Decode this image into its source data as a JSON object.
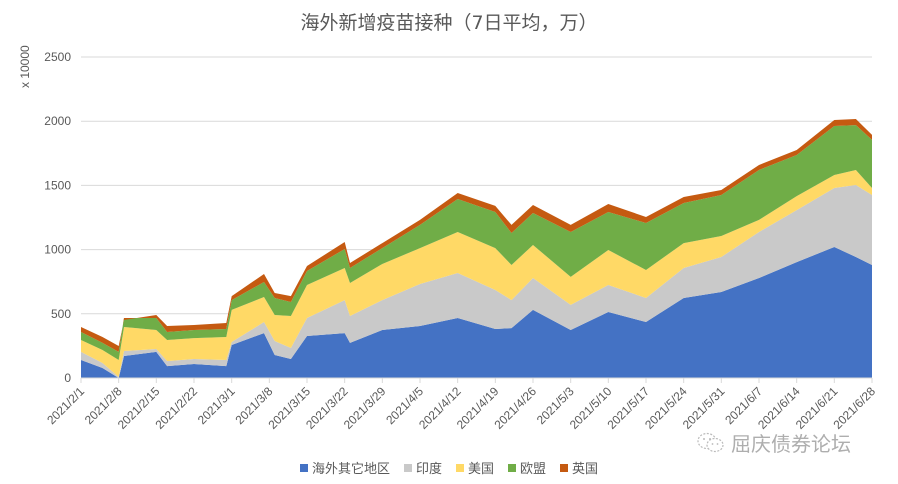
{
  "chart_data": {
    "type": "area",
    "stacked": true,
    "title": "海外新增疫苗接种（7日平均，万）",
    "xlabel": "",
    "ylabel": "x 10000",
    "ylim": [
      0,
      2500
    ],
    "yticks": [
      0,
      500,
      1000,
      1500,
      2000,
      2500
    ],
    "grid": true,
    "legend_position": "bottom",
    "x_tick_labels": [
      "2021/2/1",
      "2021/2/8",
      "2021/2/15",
      "2021/2/22",
      "2021/3/1",
      "2021/3/8",
      "2021/3/15",
      "2021/3/22",
      "2021/3/29",
      "2021/4/5",
      "2021/4/12",
      "2021/4/19",
      "2021/4/26",
      "2021/5/3",
      "2021/5/10",
      "2021/5/17",
      "2021/5/24",
      "2021/5/31",
      "2021/6/7",
      "2021/6/14",
      "2021/6/21",
      "2021/6/28"
    ],
    "x": [
      "2021/2/1",
      "2021/2/5",
      "2021/2/8",
      "2021/2/9",
      "2021/2/15",
      "2021/2/17",
      "2021/2/22",
      "2021/2/28",
      "2021/3/1",
      "2021/3/7",
      "2021/3/9",
      "2021/3/12",
      "2021/3/15",
      "2021/3/22",
      "2021/3/23",
      "2021/3/29",
      "2021/4/5",
      "2021/4/12",
      "2021/4/19",
      "2021/4/22",
      "2021/4/26",
      "2021/5/3",
      "2021/5/10",
      "2021/5/17",
      "2021/5/24",
      "2021/5/31",
      "2021/6/7",
      "2021/6/14",
      "2021/6/21",
      "2021/6/25",
      "2021/6/28"
    ],
    "series": [
      {
        "name": "海外其它地区",
        "color": "#4472C4",
        "values": [
          140,
          78,
          0,
          171,
          203,
          93,
          109,
          93,
          257,
          350,
          179,
          148,
          327,
          350,
          273,
          374,
          405,
          467,
          382,
          389,
          530,
          374,
          514,
          436,
          623,
          670,
          779,
          903,
          1020,
          942,
          880
        ]
      },
      {
        "name": "印度",
        "color": "#C9C9C9",
        "values": [
          63,
          39,
          8,
          39,
          23,
          39,
          39,
          47,
          23,
          86,
          109,
          86,
          140,
          257,
          210,
          233,
          327,
          351,
          303,
          218,
          249,
          195,
          210,
          187,
          234,
          272,
          358,
          405,
          460,
          561,
          545
        ]
      },
      {
        "name": "美国",
        "color": "#FFD966",
        "values": [
          93,
          101,
          132,
          187,
          148,
          164,
          163,
          179,
          250,
          195,
          203,
          249,
          257,
          250,
          257,
          281,
          280,
          319,
          327,
          273,
          257,
          218,
          273,
          218,
          194,
          164,
          94,
          109,
          101,
          117,
          55
        ]
      },
      {
        "name": "欧盟",
        "color": "#70AD47",
        "values": [
          62,
          55,
          63,
          70,
          93,
          62,
          63,
          63,
          77,
          117,
          132,
          109,
          109,
          148,
          117,
          124,
          180,
          257,
          281,
          249,
          249,
          350,
          296,
          366,
          312,
          319,
          389,
          320,
          382,
          350,
          374
        ]
      },
      {
        "name": "英国",
        "color": "#C55A11",
        "values": [
          39,
          46,
          46,
          -15,
          24,
          47,
          39,
          46,
          31,
          62,
          39,
          46,
          39,
          54,
          39,
          39,
          39,
          47,
          47,
          63,
          62,
          55,
          62,
          47,
          47,
          39,
          39,
          39,
          46,
          47,
          39
        ]
      }
    ]
  },
  "title": "海外新增疫苗接种（7日平均，万）",
  "y_axis_label": "x 10000",
  "y_ticks": [
    "0",
    "500",
    "1000",
    "1500",
    "2000",
    "2500"
  ],
  "x_ticks": [
    "2021/2/1",
    "2021/2/8",
    "2021/2/15",
    "2021/2/22",
    "2021/3/1",
    "2021/3/8",
    "2021/3/15",
    "2021/3/22",
    "2021/3/29",
    "2021/4/5",
    "2021/4/12",
    "2021/4/19",
    "2021/4/26",
    "2021/5/3",
    "2021/5/10",
    "2021/5/17",
    "2021/5/24",
    "2021/5/31",
    "2021/6/7",
    "2021/6/14",
    "2021/6/21",
    "2021/6/28"
  ],
  "legend": [
    {
      "label": "海外其它地区",
      "color": "#4472C4"
    },
    {
      "label": "印度",
      "color": "#C9C9C9"
    },
    {
      "label": "美国",
      "color": "#FFD966"
    },
    {
      "label": "欧盟",
      "color": "#70AD47"
    },
    {
      "label": "英国",
      "color": "#C55A11"
    }
  ],
  "watermark": {
    "text": "屈庆债券论坛",
    "icon": "wechat-icon"
  }
}
